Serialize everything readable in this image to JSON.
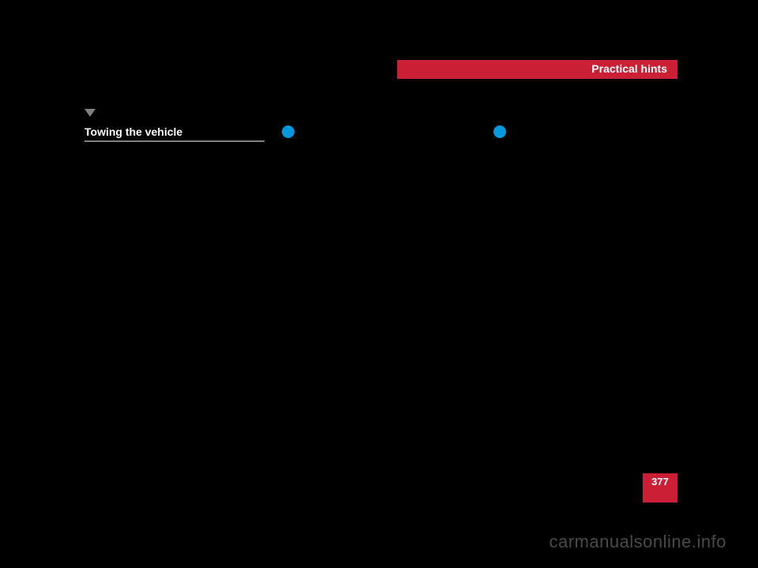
{
  "header": {
    "title": "Practical hints",
    "bar_color": "#cb1f35",
    "text_color": "#ffffff"
  },
  "section": {
    "title": "Towing the vehicle",
    "triangle_color": "#808080",
    "underline_color": "#808080"
  },
  "bullets": {
    "color": "#0099dd"
  },
  "page": {
    "number": "377",
    "badge_color": "#cb1f35"
  },
  "watermark": {
    "text": "carmanualsonline.info",
    "color": "#4a4a4a"
  },
  "colors": {
    "background": "#000000"
  }
}
